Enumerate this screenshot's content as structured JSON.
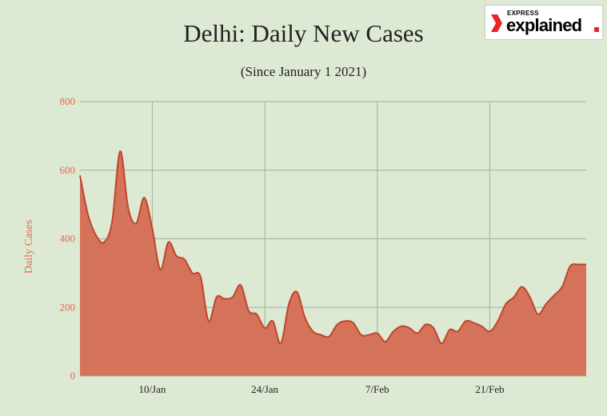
{
  "header": {
    "title": "Delhi: Daily New Cases",
    "subtitle": "(Since January 1 2021)"
  },
  "logo": {
    "top_text": "EXPRESS",
    "main_text": "explained",
    "accent_color": "#e8242a"
  },
  "colors": {
    "background": "#dde9d3",
    "area_fill": "#d4735a",
    "area_stroke": "#c0452a",
    "grid": "#9eb296",
    "axis_text": "#e06a4a"
  },
  "chart_data": {
    "type": "area",
    "title": "Delhi: Daily New Cases",
    "subtitle": "(Since January 1 2021)",
    "xlabel": "",
    "ylabel": "Daily Cases",
    "ylim": [
      0,
      800
    ],
    "yticks": [
      0,
      200,
      400,
      600,
      800
    ],
    "xtick_labels": [
      {
        "label": "10/Jan",
        "day": 10
      },
      {
        "label": "24/Jan",
        "day": 24
      },
      {
        "label": "7/Feb",
        "day": 38
      },
      {
        "label": "21/Feb",
        "day": 52
      }
    ],
    "grid": true,
    "x": [
      1,
      2,
      3,
      4,
      5,
      6,
      7,
      8,
      9,
      10,
      11,
      12,
      13,
      14,
      15,
      16,
      17,
      18,
      19,
      20,
      21,
      22,
      23,
      24,
      25,
      26,
      27,
      28,
      29,
      30,
      31,
      32,
      33,
      34,
      35,
      36,
      37,
      38,
      39,
      40,
      41,
      42,
      43,
      44,
      45,
      46,
      47,
      48,
      49,
      50,
      51,
      52,
      53,
      54,
      55,
      56,
      57,
      58,
      59,
      60,
      61,
      62,
      63,
      64
    ],
    "series": [
      {
        "values": [
          585,
          470,
          410,
          390,
          450,
          655,
          490,
          445,
          520,
          430,
          310,
          390,
          350,
          340,
          300,
          290,
          160,
          230,
          225,
          230,
          265,
          190,
          180,
          140,
          160,
          95,
          210,
          245,
          170,
          130,
          120,
          115,
          150,
          160,
          155,
          120,
          120,
          125,
          100,
          130,
          145,
          140,
          125,
          150,
          140,
          95,
          135,
          130,
          160,
          155,
          145,
          130,
          160,
          210,
          230,
          260,
          230,
          180,
          210,
          235,
          260,
          320,
          325,
          325
        ]
      }
    ]
  }
}
